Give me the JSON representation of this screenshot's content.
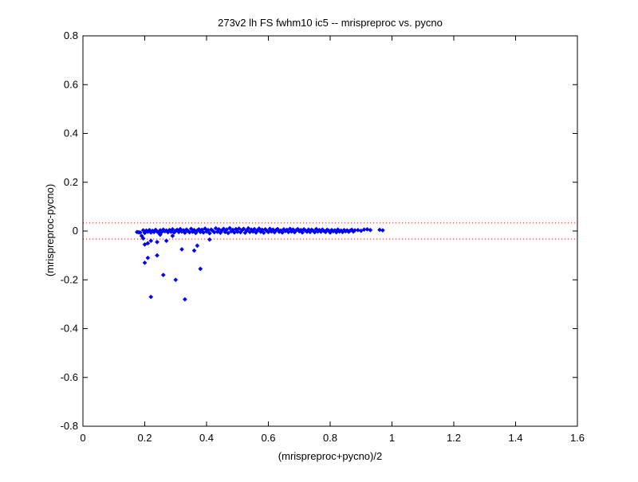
{
  "chart_data": {
    "type": "scatter",
    "title": "273v2 lh FS fwhm10 ic5 -- mrispreproc vs. pycno",
    "xlabel": "(mrispreproc+pycno)/2",
    "ylabel": "(mrispreproc-pycno)",
    "xlim": [
      0,
      1.6
    ],
    "ylim": [
      -0.8,
      0.8
    ],
    "xticks": [
      0,
      0.2,
      0.4,
      0.6,
      0.8,
      1,
      1.2,
      1.4,
      1.6
    ],
    "xtick_labels": [
      "0",
      "0.2",
      "0.4",
      "0.6",
      "0.8",
      "1",
      "1.2",
      "1.4",
      "1.6"
    ],
    "yticks": [
      -0.8,
      -0.6,
      -0.4,
      -0.2,
      0,
      0.2,
      0.4,
      0.6,
      0.8
    ],
    "ytick_labels": [
      "-0.8",
      "-0.6",
      "-0.4",
      "-0.2",
      "0",
      "0.2",
      "0.4",
      "0.6",
      "0.8"
    ],
    "grid": false,
    "marker_color": "#0000ff",
    "reference_line_color": "#ff0000",
    "reference_lines_y": [
      0.033,
      -0.033
    ],
    "outlier_points": [
      {
        "x": 0.18,
        "y": -0.005
      },
      {
        "x": 0.19,
        "y": -0.02
      },
      {
        "x": 0.195,
        "y": -0.03
      },
      {
        "x": 0.2,
        "y": -0.055
      },
      {
        "x": 0.21,
        "y": -0.05
      },
      {
        "x": 0.22,
        "y": -0.04
      },
      {
        "x": 0.2,
        "y": -0.13
      },
      {
        "x": 0.21,
        "y": -0.11
      },
      {
        "x": 0.24,
        "y": -0.045
      },
      {
        "x": 0.24,
        "y": -0.1
      },
      {
        "x": 0.26,
        "y": -0.18
      },
      {
        "x": 0.27,
        "y": -0.04
      },
      {
        "x": 0.22,
        "y": -0.27
      },
      {
        "x": 0.3,
        "y": -0.2
      },
      {
        "x": 0.32,
        "y": -0.075
      },
      {
        "x": 0.33,
        "y": -0.28
      },
      {
        "x": 0.36,
        "y": -0.08
      },
      {
        "x": 0.37,
        "y": -0.06
      },
      {
        "x": 0.38,
        "y": -0.155
      },
      {
        "x": 0.41,
        "y": -0.035
      },
      {
        "x": 0.25,
        "y": -0.015
      },
      {
        "x": 0.29,
        "y": -0.02
      }
    ],
    "band_points_x": [
      0.175,
      0.185,
      0.195,
      0.2,
      0.205,
      0.21,
      0.215,
      0.22,
      0.225,
      0.23,
      0.235,
      0.24,
      0.245,
      0.25,
      0.255,
      0.26,
      0.265,
      0.27,
      0.275,
      0.28,
      0.285,
      0.29,
      0.295,
      0.3,
      0.305,
      0.31,
      0.315,
      0.32,
      0.325,
      0.33,
      0.335,
      0.34,
      0.345,
      0.35,
      0.355,
      0.36,
      0.365,
      0.37,
      0.375,
      0.38,
      0.385,
      0.39,
      0.395,
      0.4,
      0.405,
      0.41,
      0.415,
      0.42,
      0.425,
      0.43,
      0.435,
      0.44,
      0.445,
      0.45,
      0.455,
      0.46,
      0.465,
      0.47,
      0.475,
      0.48,
      0.485,
      0.49,
      0.495,
      0.5,
      0.505,
      0.51,
      0.515,
      0.52,
      0.525,
      0.53,
      0.535,
      0.54,
      0.545,
      0.55,
      0.555,
      0.56,
      0.565,
      0.57,
      0.575,
      0.58,
      0.585,
      0.59,
      0.595,
      0.6,
      0.605,
      0.61,
      0.615,
      0.62,
      0.625,
      0.63,
      0.635,
      0.64,
      0.645,
      0.65,
      0.655,
      0.66,
      0.665,
      0.67,
      0.675,
      0.68,
      0.685,
      0.69,
      0.695,
      0.7,
      0.705,
      0.71,
      0.715,
      0.72,
      0.725,
      0.73,
      0.735,
      0.74,
      0.745,
      0.75,
      0.755,
      0.76,
      0.765,
      0.77,
      0.775,
      0.78,
      0.785,
      0.79,
      0.795,
      0.8,
      0.805,
      0.81,
      0.815,
      0.82,
      0.825,
      0.83,
      0.835,
      0.84,
      0.845,
      0.85,
      0.855,
      0.86,
      0.865,
      0.87,
      0.875,
      0.88,
      0.89,
      0.9,
      0.91,
      0.92,
      0.93,
      0.96,
      0.97
    ],
    "band_points_y": [
      -0.004,
      -0.006,
      0.003,
      -0.008,
      0.002,
      -0.003,
      0.004,
      -0.006,
      0.001,
      -0.004,
      0.005,
      -0.002,
      -0.007,
      0.003,
      -0.004,
      0.006,
      -0.001,
      0.002,
      -0.005,
      0.004,
      -0.003,
      0.007,
      -0.006,
      0.001,
      0.005,
      -0.004,
      0.008,
      -0.002,
      0.003,
      -0.007,
      0.006,
      0.0,
      -0.005,
      0.009,
      -0.003,
      0.004,
      -0.008,
      0.002,
      0.007,
      -0.004,
      0.005,
      -0.006,
      0.01,
      -0.002,
      0.004,
      -0.009,
      0.006,
      0.001,
      -0.005,
      0.011,
      -0.003,
      0.007,
      -0.007,
      0.003,
      0.009,
      -0.004,
      0.006,
      -0.008,
      0.012,
      -0.001,
      0.005,
      -0.006,
      0.008,
      -0.003,
      0.01,
      -0.005,
      0.004,
      0.009,
      -0.007,
      0.002,
      0.011,
      -0.004,
      0.006,
      -0.002,
      0.008,
      -0.006,
      0.003,
      0.01,
      -0.003,
      0.005,
      -0.007,
      0.007,
      0.001,
      -0.004,
      0.009,
      -0.002,
      0.006,
      -0.005,
      0.004,
      0.008,
      -0.003,
      0.002,
      -0.006,
      0.007,
      0.0,
      0.005,
      -0.004,
      0.009,
      -0.002,
      0.006,
      -0.005,
      0.003,
      0.008,
      -0.001,
      0.004,
      -0.006,
      0.007,
      0.002,
      -0.003,
      0.006,
      -0.004,
      0.005,
      0.001,
      -0.005,
      0.008,
      -0.002,
      0.004,
      -0.003,
      0.006,
      0.0,
      -0.004,
      0.005,
      0.002,
      -0.006,
      0.004,
      -0.001,
      0.003,
      -0.005,
      0.006,
      -0.002,
      0.002,
      -0.004,
      0.004,
      -0.001,
      0.003,
      -0.003,
      0.002,
      0.005,
      -0.002,
      0.003,
      0.004,
      0.001,
      0.006,
      0.007,
      0.004,
      0.005,
      0.003
    ]
  }
}
